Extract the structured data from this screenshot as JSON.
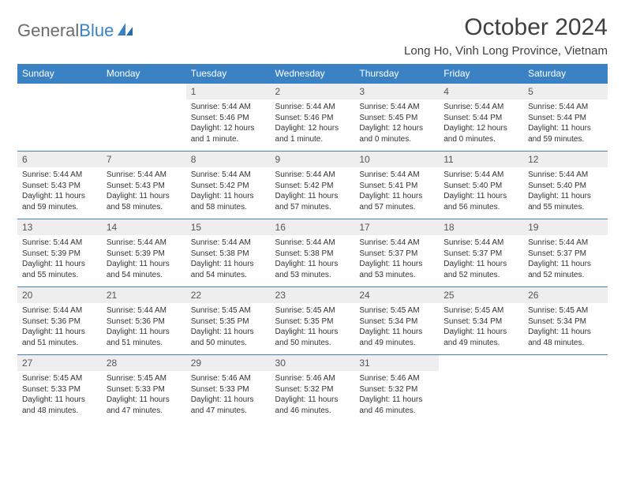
{
  "logo": {
    "word1": "General",
    "word2": "Blue"
  },
  "title": "October 2024",
  "location": "Long Ho, Vinh Long Province, Vietnam",
  "colors": {
    "header_bg": "#3b82c4",
    "header_text": "#ffffff",
    "daynum_bg": "#eeeeee",
    "border": "#3b82c4",
    "logo_gray": "#6b6b6b",
    "logo_blue": "#3b82c4"
  },
  "columns": [
    "Sunday",
    "Monday",
    "Tuesday",
    "Wednesday",
    "Thursday",
    "Friday",
    "Saturday"
  ],
  "weeks": [
    [
      null,
      null,
      {
        "n": "1",
        "sunrise": "5:44 AM",
        "sunset": "5:46 PM",
        "daylight": "12 hours and 1 minute."
      },
      {
        "n": "2",
        "sunrise": "5:44 AM",
        "sunset": "5:46 PM",
        "daylight": "12 hours and 1 minute."
      },
      {
        "n": "3",
        "sunrise": "5:44 AM",
        "sunset": "5:45 PM",
        "daylight": "12 hours and 0 minutes."
      },
      {
        "n": "4",
        "sunrise": "5:44 AM",
        "sunset": "5:44 PM",
        "daylight": "12 hours and 0 minutes."
      },
      {
        "n": "5",
        "sunrise": "5:44 AM",
        "sunset": "5:44 PM",
        "daylight": "11 hours and 59 minutes."
      }
    ],
    [
      {
        "n": "6",
        "sunrise": "5:44 AM",
        "sunset": "5:43 PM",
        "daylight": "11 hours and 59 minutes."
      },
      {
        "n": "7",
        "sunrise": "5:44 AM",
        "sunset": "5:43 PM",
        "daylight": "11 hours and 58 minutes."
      },
      {
        "n": "8",
        "sunrise": "5:44 AM",
        "sunset": "5:42 PM",
        "daylight": "11 hours and 58 minutes."
      },
      {
        "n": "9",
        "sunrise": "5:44 AM",
        "sunset": "5:42 PM",
        "daylight": "11 hours and 57 minutes."
      },
      {
        "n": "10",
        "sunrise": "5:44 AM",
        "sunset": "5:41 PM",
        "daylight": "11 hours and 57 minutes."
      },
      {
        "n": "11",
        "sunrise": "5:44 AM",
        "sunset": "5:40 PM",
        "daylight": "11 hours and 56 minutes."
      },
      {
        "n": "12",
        "sunrise": "5:44 AM",
        "sunset": "5:40 PM",
        "daylight": "11 hours and 55 minutes."
      }
    ],
    [
      {
        "n": "13",
        "sunrise": "5:44 AM",
        "sunset": "5:39 PM",
        "daylight": "11 hours and 55 minutes."
      },
      {
        "n": "14",
        "sunrise": "5:44 AM",
        "sunset": "5:39 PM",
        "daylight": "11 hours and 54 minutes."
      },
      {
        "n": "15",
        "sunrise": "5:44 AM",
        "sunset": "5:38 PM",
        "daylight": "11 hours and 54 minutes."
      },
      {
        "n": "16",
        "sunrise": "5:44 AM",
        "sunset": "5:38 PM",
        "daylight": "11 hours and 53 minutes."
      },
      {
        "n": "17",
        "sunrise": "5:44 AM",
        "sunset": "5:37 PM",
        "daylight": "11 hours and 53 minutes."
      },
      {
        "n": "18",
        "sunrise": "5:44 AM",
        "sunset": "5:37 PM",
        "daylight": "11 hours and 52 minutes."
      },
      {
        "n": "19",
        "sunrise": "5:44 AM",
        "sunset": "5:37 PM",
        "daylight": "11 hours and 52 minutes."
      }
    ],
    [
      {
        "n": "20",
        "sunrise": "5:44 AM",
        "sunset": "5:36 PM",
        "daylight": "11 hours and 51 minutes."
      },
      {
        "n": "21",
        "sunrise": "5:44 AM",
        "sunset": "5:36 PM",
        "daylight": "11 hours and 51 minutes."
      },
      {
        "n": "22",
        "sunrise": "5:45 AM",
        "sunset": "5:35 PM",
        "daylight": "11 hours and 50 minutes."
      },
      {
        "n": "23",
        "sunrise": "5:45 AM",
        "sunset": "5:35 PM",
        "daylight": "11 hours and 50 minutes."
      },
      {
        "n": "24",
        "sunrise": "5:45 AM",
        "sunset": "5:34 PM",
        "daylight": "11 hours and 49 minutes."
      },
      {
        "n": "25",
        "sunrise": "5:45 AM",
        "sunset": "5:34 PM",
        "daylight": "11 hours and 49 minutes."
      },
      {
        "n": "26",
        "sunrise": "5:45 AM",
        "sunset": "5:34 PM",
        "daylight": "11 hours and 48 minutes."
      }
    ],
    [
      {
        "n": "27",
        "sunrise": "5:45 AM",
        "sunset": "5:33 PM",
        "daylight": "11 hours and 48 minutes."
      },
      {
        "n": "28",
        "sunrise": "5:45 AM",
        "sunset": "5:33 PM",
        "daylight": "11 hours and 47 minutes."
      },
      {
        "n": "29",
        "sunrise": "5:46 AM",
        "sunset": "5:33 PM",
        "daylight": "11 hours and 47 minutes."
      },
      {
        "n": "30",
        "sunrise": "5:46 AM",
        "sunset": "5:32 PM",
        "daylight": "11 hours and 46 minutes."
      },
      {
        "n": "31",
        "sunrise": "5:46 AM",
        "sunset": "5:32 PM",
        "daylight": "11 hours and 46 minutes."
      },
      null,
      null
    ]
  ],
  "labels": {
    "sunrise": "Sunrise:",
    "sunset": "Sunset:",
    "daylight": "Daylight:"
  }
}
